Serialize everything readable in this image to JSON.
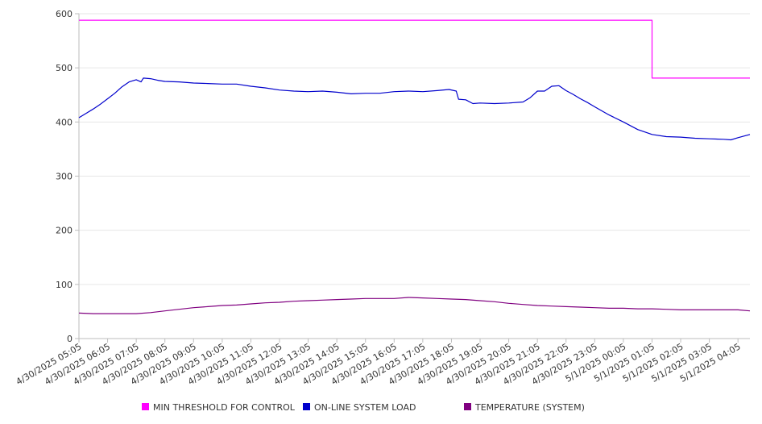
{
  "chart_data": {
    "type": "line",
    "title": "",
    "xlabel": "",
    "ylabel": "",
    "ylim": [
      0,
      600
    ],
    "yticks": [
      0,
      100,
      200,
      300,
      400,
      500,
      600
    ],
    "grid": true,
    "legend_position": "bottom",
    "x_start": "4/30/2025 05:05",
    "x_end": "5/1/2025 04:30",
    "x_tick_labels": [
      "4/30/2025 05:05",
      "4/30/2025 06:05",
      "4/30/2025 07:05",
      "4/30/2025 08:05",
      "4/30/2025 09:05",
      "4/30/2025 10:05",
      "4/30/2025 11:05",
      "4/30/2025 12:05",
      "4/30/2025 13:05",
      "4/30/2025 14:05",
      "4/30/2025 15:05",
      "4/30/2025 16:05",
      "4/30/2025 17:05",
      "4/30/2025 18:05",
      "4/30/2025 19:05",
      "4/30/2025 20:05",
      "4/30/2025 21:05",
      "4/30/2025 22:05",
      "4/30/2025 23:05",
      "5/1/2025 00:05",
      "5/1/2025 01:05",
      "5/1/2025 02:05",
      "5/1/2025 03:05",
      "5/1/2025 04:05"
    ],
    "series": [
      {
        "name": "MIN THRESHOLD FOR CONTROL",
        "color": "#ff00ff",
        "step": true,
        "points": [
          [
            "4/30/2025 05:05",
            588
          ],
          [
            "5/1/2025 01:05",
            588
          ],
          [
            "5/1/2025 01:05",
            481
          ],
          [
            "5/1/2025 04:30",
            481
          ]
        ]
      },
      {
        "name": "ON-LINE SYSTEM LOAD",
        "color": "#0000cc",
        "points": [
          [
            "4/30/2025 05:05",
            408
          ],
          [
            "4/30/2025 05:20",
            416
          ],
          [
            "4/30/2025 05:35",
            424
          ],
          [
            "4/30/2025 05:50",
            433
          ],
          [
            "4/30/2025 06:05",
            443
          ],
          [
            "4/30/2025 06:20",
            453
          ],
          [
            "4/30/2025 06:35",
            465
          ],
          [
            "4/30/2025 06:50",
            474
          ],
          [
            "4/30/2025 07:05",
            478
          ],
          [
            "4/30/2025 07:15",
            474
          ],
          [
            "4/30/2025 07:20",
            481
          ],
          [
            "4/30/2025 07:35",
            480
          ],
          [
            "4/30/2025 07:50",
            477
          ],
          [
            "4/30/2025 08:05",
            475
          ],
          [
            "4/30/2025 08:35",
            474
          ],
          [
            "4/30/2025 09:05",
            472
          ],
          [
            "4/30/2025 09:35",
            471
          ],
          [
            "4/30/2025 10:05",
            470
          ],
          [
            "4/30/2025 10:35",
            470
          ],
          [
            "4/30/2025 11:05",
            466
          ],
          [
            "4/30/2025 11:35",
            463
          ],
          [
            "4/30/2025 12:05",
            459
          ],
          [
            "4/30/2025 12:35",
            457
          ],
          [
            "4/30/2025 13:05",
            456
          ],
          [
            "4/30/2025 13:35",
            457
          ],
          [
            "4/30/2025 14:05",
            455
          ],
          [
            "4/30/2025 14:35",
            452
          ],
          [
            "4/30/2025 15:05",
            453
          ],
          [
            "4/30/2025 15:35",
            453
          ],
          [
            "4/30/2025 16:05",
            456
          ],
          [
            "4/30/2025 16:35",
            457
          ],
          [
            "4/30/2025 17:05",
            456
          ],
          [
            "4/30/2025 17:35",
            458
          ],
          [
            "4/30/2025 18:00",
            460
          ],
          [
            "4/30/2025 18:15",
            457
          ],
          [
            "4/30/2025 18:20",
            442
          ],
          [
            "4/30/2025 18:35",
            441
          ],
          [
            "4/30/2025 18:50",
            434
          ],
          [
            "4/30/2025 19:05",
            435
          ],
          [
            "4/30/2025 19:35",
            434
          ],
          [
            "4/30/2025 20:05",
            435
          ],
          [
            "4/30/2025 20:35",
            437
          ],
          [
            "4/30/2025 20:50",
            445
          ],
          [
            "4/30/2025 21:05",
            457
          ],
          [
            "4/30/2025 21:20",
            457
          ],
          [
            "4/30/2025 21:35",
            466
          ],
          [
            "4/30/2025 21:50",
            467
          ],
          [
            "4/30/2025 22:05",
            458
          ],
          [
            "4/30/2025 22:20",
            451
          ],
          [
            "4/30/2025 22:35",
            443
          ],
          [
            "4/30/2025 22:50",
            436
          ],
          [
            "4/30/2025 23:05",
            428
          ],
          [
            "4/30/2025 23:35",
            413
          ],
          [
            "5/1/2025 00:05",
            400
          ],
          [
            "5/1/2025 00:35",
            386
          ],
          [
            "5/1/2025 01:05",
            377
          ],
          [
            "5/1/2025 01:35",
            373
          ],
          [
            "5/1/2025 02:05",
            372
          ],
          [
            "5/1/2025 02:35",
            370
          ],
          [
            "5/1/2025 03:05",
            369
          ],
          [
            "5/1/2025 03:35",
            368
          ],
          [
            "5/1/2025 03:50",
            367
          ],
          [
            "5/1/2025 04:05",
            371
          ],
          [
            "5/1/2025 04:30",
            377
          ]
        ]
      },
      {
        "name": "TEMPERATURE (SYSTEM)",
        "color": "#800080",
        "points": [
          [
            "4/30/2025 05:05",
            47
          ],
          [
            "4/30/2025 05:35",
            46
          ],
          [
            "4/30/2025 06:05",
            46
          ],
          [
            "4/30/2025 06:35",
            46
          ],
          [
            "4/30/2025 07:05",
            46
          ],
          [
            "4/30/2025 07:35",
            48
          ],
          [
            "4/30/2025 08:05",
            51
          ],
          [
            "4/30/2025 08:35",
            54
          ],
          [
            "4/30/2025 09:05",
            57
          ],
          [
            "4/30/2025 09:35",
            59
          ],
          [
            "4/30/2025 10:05",
            61
          ],
          [
            "4/30/2025 10:35",
            62
          ],
          [
            "4/30/2025 11:05",
            64
          ],
          [
            "4/30/2025 11:35",
            66
          ],
          [
            "4/30/2025 12:05",
            67
          ],
          [
            "4/30/2025 12:35",
            69
          ],
          [
            "4/30/2025 13:05",
            70
          ],
          [
            "4/30/2025 13:35",
            71
          ],
          [
            "4/30/2025 14:05",
            72
          ],
          [
            "4/30/2025 14:35",
            73
          ],
          [
            "4/30/2025 15:05",
            74
          ],
          [
            "4/30/2025 15:35",
            74
          ],
          [
            "4/30/2025 16:05",
            74
          ],
          [
            "4/30/2025 16:35",
            76
          ],
          [
            "4/30/2025 17:05",
            75
          ],
          [
            "4/30/2025 17:35",
            74
          ],
          [
            "4/30/2025 18:05",
            73
          ],
          [
            "4/30/2025 18:35",
            72
          ],
          [
            "4/30/2025 19:05",
            70
          ],
          [
            "4/30/2025 19:35",
            68
          ],
          [
            "4/30/2025 20:05",
            65
          ],
          [
            "4/30/2025 20:35",
            63
          ],
          [
            "4/30/2025 21:05",
            61
          ],
          [
            "4/30/2025 21:35",
            60
          ],
          [
            "4/30/2025 22:05",
            59
          ],
          [
            "4/30/2025 22:35",
            58
          ],
          [
            "4/30/2025 23:05",
            57
          ],
          [
            "4/30/2025 23:35",
            56
          ],
          [
            "5/1/2025 00:05",
            56
          ],
          [
            "5/1/2025 00:35",
            55
          ],
          [
            "5/1/2025 01:05",
            55
          ],
          [
            "5/1/2025 01:35",
            54
          ],
          [
            "5/1/2025 02:05",
            53
          ],
          [
            "5/1/2025 02:35",
            53
          ],
          [
            "5/1/2025 03:05",
            53
          ],
          [
            "5/1/2025 03:35",
            53
          ],
          [
            "5/1/2025 04:05",
            53
          ],
          [
            "5/1/2025 04:30",
            51
          ]
        ]
      }
    ]
  }
}
